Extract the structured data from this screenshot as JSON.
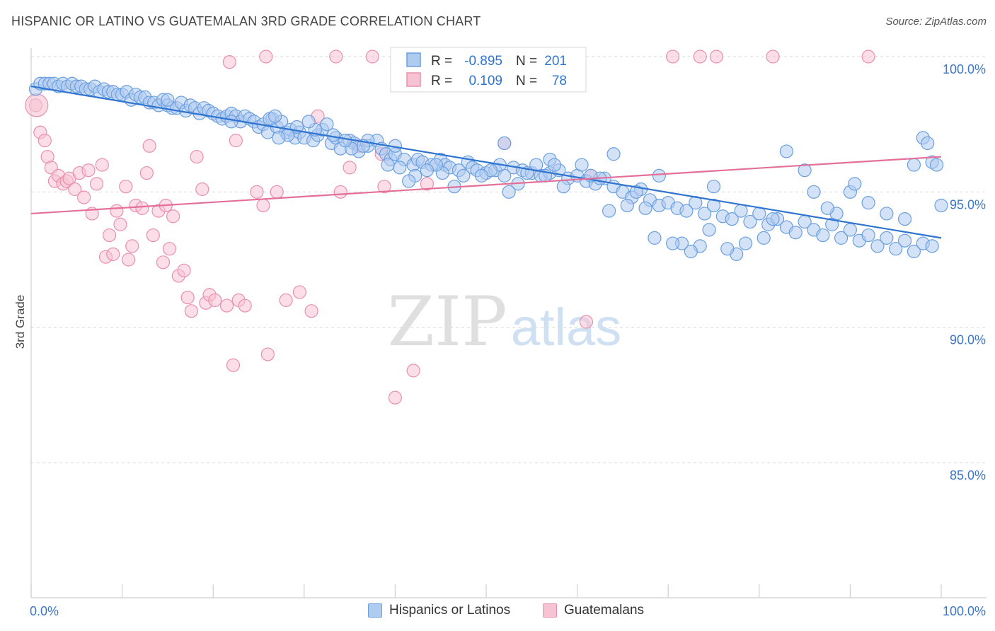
{
  "title": "HISPANIC OR LATINO VS GUATEMALAN 3RD GRADE CORRELATION CHART",
  "source": "Source: ZipAtlas.com",
  "watermark": {
    "zip": "ZIP",
    "atlas": "atlas"
  },
  "legend": {
    "rows": [
      {
        "r_label": "R =",
        "r_value": "-0.895",
        "n_label": "N =",
        "n_value": "201"
      },
      {
        "r_label": "R =",
        "r_value": "0.109",
        "n_label": "N =",
        "n_value": "78"
      }
    ]
  },
  "colors": {
    "blue_fill": "#aecbf0",
    "blue_stroke": "#6a9fdf",
    "blue_line": "#2f74d0",
    "pink_fill": "#f7c3d3",
    "pink_stroke": "#ea8fae",
    "pink_line": "#e4709a",
    "tick_label": "#3d77c8",
    "grid": "#d9d9d9"
  },
  "chart_data": {
    "type": "scatter",
    "xlabel": "",
    "ylabel": "3rd Grade",
    "xlim": [
      0,
      100
    ],
    "ylim": [
      80.5,
      100.5
    ],
    "x_tick_labels": [
      "0.0%",
      "100.0%"
    ],
    "y_ticks": [
      85,
      90,
      95,
      100
    ],
    "y_tick_labels": [
      "85.0%",
      "90.0%",
      "95.0%",
      "100.0%"
    ],
    "grid": "horizontal dashed",
    "legend_position": "top-center and bottom",
    "series": [
      {
        "name": "Hispanics or Latinos",
        "color": "#aecbf0",
        "trend": {
          "x": [
            0,
            100
          ],
          "y": [
            98.9,
            93.3
          ]
        },
        "points": [
          [
            0.5,
            98.8
          ],
          [
            1,
            99.0
          ],
          [
            1.5,
            99.0
          ],
          [
            2,
            99.0
          ],
          [
            2.5,
            99.0
          ],
          [
            3,
            98.9
          ],
          [
            3.5,
            99.0
          ],
          [
            4,
            98.9
          ],
          [
            4.5,
            99.0
          ],
          [
            5,
            98.9
          ],
          [
            5.5,
            98.9
          ],
          [
            6,
            98.8
          ],
          [
            6.5,
            98.8
          ],
          [
            7,
            98.9
          ],
          [
            7.5,
            98.7
          ],
          [
            8,
            98.8
          ],
          [
            8.5,
            98.7
          ],
          [
            9,
            98.7
          ],
          [
            9.5,
            98.6
          ],
          [
            10,
            98.6
          ],
          [
            10.5,
            98.7
          ],
          [
            11,
            98.4
          ],
          [
            11.5,
            98.6
          ],
          [
            12,
            98.5
          ],
          [
            12.5,
            98.5
          ],
          [
            13,
            98.3
          ],
          [
            13.5,
            98.3
          ],
          [
            14,
            98.2
          ],
          [
            14.5,
            98.4
          ],
          [
            15,
            98.2
          ],
          [
            15.5,
            98.1
          ],
          [
            16,
            98.1
          ],
          [
            16.5,
            98.3
          ],
          [
            17,
            98.0
          ],
          [
            17.5,
            98.2
          ],
          [
            18,
            98.1
          ],
          [
            18.5,
            97.9
          ],
          [
            19,
            98.1
          ],
          [
            19.5,
            98.0
          ],
          [
            20,
            97.9
          ],
          [
            20.5,
            97.8
          ],
          [
            21,
            97.7
          ],
          [
            21.5,
            97.8
          ],
          [
            22,
            97.9
          ],
          [
            22.5,
            97.8
          ],
          [
            23,
            97.6
          ],
          [
            23.5,
            97.8
          ],
          [
            24,
            97.7
          ],
          [
            24.5,
            97.6
          ],
          [
            25,
            97.4
          ],
          [
            25.5,
            97.5
          ],
          [
            26,
            97.2
          ],
          [
            26.5,
            97.7
          ],
          [
            27,
            97.4
          ],
          [
            27.5,
            97.6
          ],
          [
            28,
            97.2
          ],
          [
            28.5,
            97.3
          ],
          [
            29,
            97.0
          ],
          [
            29.5,
            97.2
          ],
          [
            30,
            97.0
          ],
          [
            31,
            96.9
          ],
          [
            31.5,
            97.1
          ],
          [
            32,
            97.3
          ],
          [
            33,
            96.8
          ],
          [
            33.5,
            97.0
          ],
          [
            34,
            96.6
          ],
          [
            35,
            96.9
          ],
          [
            35.5,
            96.8
          ],
          [
            36,
            96.5
          ],
          [
            37,
            96.7
          ],
          [
            38,
            96.9
          ],
          [
            38.5,
            96.6
          ],
          [
            39,
            96.4
          ],
          [
            39.5,
            96.2
          ],
          [
            40,
            96.4
          ],
          [
            41,
            96.2
          ],
          [
            42,
            96.0
          ],
          [
            42.5,
            96.2
          ],
          [
            43,
            96.1
          ],
          [
            44,
            96.0
          ],
          [
            45,
            96.2
          ],
          [
            45.5,
            96.0
          ],
          [
            46,
            95.9
          ],
          [
            47,
            95.8
          ],
          [
            48,
            96.1
          ],
          [
            48.5,
            95.9
          ],
          [
            49,
            95.8
          ],
          [
            50,
            95.7
          ],
          [
            51,
            95.8
          ],
          [
            52,
            95.6
          ],
          [
            53,
            95.9
          ],
          [
            54,
            95.8
          ],
          [
            55,
            95.7
          ],
          [
            56,
            95.6
          ],
          [
            57,
            95.7
          ],
          [
            58,
            95.8
          ],
          [
            59,
            95.5
          ],
          [
            60,
            95.6
          ],
          [
            61,
            95.4
          ],
          [
            62,
            95.3
          ],
          [
            63,
            95.5
          ],
          [
            64,
            95.2
          ],
          [
            65,
            95.0
          ],
          [
            66,
            94.8
          ],
          [
            67,
            95.1
          ],
          [
            68,
            94.7
          ],
          [
            69,
            94.5
          ],
          [
            70,
            94.6
          ],
          [
            71,
            94.4
          ],
          [
            72,
            94.3
          ],
          [
            73,
            94.6
          ],
          [
            74,
            94.2
          ],
          [
            75,
            94.5
          ],
          [
            76,
            94.1
          ],
          [
            77,
            94.0
          ],
          [
            78,
            94.3
          ],
          [
            79,
            93.9
          ],
          [
            80,
            94.2
          ],
          [
            81,
            93.8
          ],
          [
            82,
            94.0
          ],
          [
            83,
            93.7
          ],
          [
            84,
            93.5
          ],
          [
            85,
            93.9
          ],
          [
            86,
            93.6
          ],
          [
            87,
            93.4
          ],
          [
            88,
            93.8
          ],
          [
            89,
            93.3
          ],
          [
            90,
            93.6
          ],
          [
            91,
            93.2
          ],
          [
            92,
            93.4
          ],
          [
            93,
            93.0
          ],
          [
            94,
            93.3
          ],
          [
            95,
            92.9
          ],
          [
            96,
            93.2
          ],
          [
            97,
            92.8
          ],
          [
            98,
            93.1
          ],
          [
            99,
            93.0
          ],
          [
            15,
            98.4
          ],
          [
            22,
            97.6
          ],
          [
            37,
            96.9
          ],
          [
            40,
            96.7
          ],
          [
            52,
            96.8
          ],
          [
            57,
            96.2
          ],
          [
            64,
            96.4
          ],
          [
            69,
            95.6
          ],
          [
            75,
            95.2
          ],
          [
            83,
            96.5
          ],
          [
            85,
            95.8
          ],
          [
            86,
            95.0
          ],
          [
            90,
            95.0
          ],
          [
            92,
            94.6
          ],
          [
            94,
            94.2
          ],
          [
            96,
            94.0
          ],
          [
            97,
            96.0
          ],
          [
            98,
            97.0
          ],
          [
            99,
            96.1
          ],
          [
            100,
            94.5
          ],
          [
            99.5,
            96.0
          ],
          [
            98.5,
            96.8
          ],
          [
            90.5,
            95.3
          ],
          [
            88.5,
            94.2
          ],
          [
            87.5,
            94.4
          ],
          [
            81.5,
            94.0
          ],
          [
            80.5,
            93.3
          ],
          [
            78.5,
            93.1
          ],
          [
            77.5,
            92.7
          ],
          [
            76.5,
            92.9
          ],
          [
            74.5,
            93.6
          ],
          [
            73.5,
            93.0
          ],
          [
            72.5,
            92.8
          ],
          [
            71.5,
            93.1
          ],
          [
            70.5,
            93.1
          ],
          [
            68.5,
            93.3
          ],
          [
            67.5,
            94.4
          ],
          [
            66.5,
            95.0
          ],
          [
            65.5,
            94.5
          ],
          [
            63.5,
            94.3
          ],
          [
            62.5,
            95.5
          ],
          [
            61.5,
            95.6
          ],
          [
            60.5,
            96.0
          ],
          [
            58.5,
            95.2
          ],
          [
            57.5,
            96.0
          ],
          [
            56.5,
            95.6
          ],
          [
            55.5,
            96.0
          ],
          [
            54.5,
            95.7
          ],
          [
            53.5,
            95.3
          ],
          [
            52.5,
            95.0
          ],
          [
            51.5,
            96.0
          ],
          [
            50.5,
            95.8
          ],
          [
            49.5,
            95.6
          ],
          [
            47.5,
            95.6
          ],
          [
            46.5,
            95.2
          ],
          [
            45.2,
            95.7
          ],
          [
            44.5,
            96.0
          ],
          [
            43.5,
            95.8
          ],
          [
            42.2,
            95.6
          ],
          [
            41.5,
            95.4
          ],
          [
            40.5,
            95.9
          ],
          [
            39.2,
            96.0
          ],
          [
            36.5,
            96.7
          ],
          [
            35.2,
            96.6
          ],
          [
            34.5,
            96.9
          ],
          [
            33.2,
            97.1
          ],
          [
            32.5,
            97.5
          ],
          [
            31.2,
            97.3
          ],
          [
            30.5,
            97.6
          ],
          [
            29.2,
            97.4
          ],
          [
            28.2,
            97.1
          ],
          [
            27.2,
            97.0
          ],
          [
            26.2,
            97.7
          ],
          [
            26.8,
            97.8
          ]
        ]
      },
      {
        "name": "Guatemalans",
        "color": "#f7c3d3",
        "trend": {
          "x": [
            0,
            100
          ],
          "y": [
            94.2,
            96.3
          ]
        },
        "points": [
          [
            0.5,
            98.2
          ],
          [
            1,
            97.2
          ],
          [
            1.5,
            96.9
          ],
          [
            1.8,
            96.3
          ],
          [
            2.2,
            95.9
          ],
          [
            2.6,
            95.4
          ],
          [
            3,
            95.6
          ],
          [
            3.5,
            95.3
          ],
          [
            3.9,
            95.4
          ],
          [
            4.2,
            95.5
          ],
          [
            4.8,
            95.1
          ],
          [
            5.3,
            95.7
          ],
          [
            5.8,
            94.8
          ],
          [
            6.3,
            95.8
          ],
          [
            6.7,
            94.2
          ],
          [
            7.2,
            95.3
          ],
          [
            7.8,
            96.0
          ],
          [
            8.2,
            92.6
          ],
          [
            8.6,
            93.4
          ],
          [
            9,
            92.7
          ],
          [
            9.4,
            94.3
          ],
          [
            9.8,
            93.8
          ],
          [
            10.4,
            95.2
          ],
          [
            10.7,
            92.5
          ],
          [
            11.1,
            93.0
          ],
          [
            11.5,
            94.5
          ],
          [
            12.2,
            94.4
          ],
          [
            12.7,
            95.7
          ],
          [
            13,
            96.7
          ],
          [
            13.4,
            93.4
          ],
          [
            14,
            94.3
          ],
          [
            14.5,
            92.4
          ],
          [
            14.8,
            94.5
          ],
          [
            15.2,
            92.9
          ],
          [
            15.6,
            94.1
          ],
          [
            16.2,
            91.9
          ],
          [
            16.8,
            92.1
          ],
          [
            17.2,
            91.1
          ],
          [
            17.6,
            90.6
          ],
          [
            18.2,
            96.3
          ],
          [
            18.8,
            95.1
          ],
          [
            19.2,
            90.9
          ],
          [
            19.6,
            91.2
          ],
          [
            20.2,
            91.0
          ],
          [
            21.5,
            90.8
          ],
          [
            22.2,
            88.6
          ],
          [
            22.5,
            96.9
          ],
          [
            22.8,
            91.0
          ],
          [
            23.5,
            90.8
          ],
          [
            24.8,
            95.0
          ],
          [
            25.5,
            94.5
          ],
          [
            26,
            89.0
          ],
          [
            27,
            95.0
          ],
          [
            28,
            91.0
          ],
          [
            29.5,
            91.3
          ],
          [
            30.8,
            90.6
          ],
          [
            31.5,
            97.8
          ],
          [
            33.5,
            100.0
          ],
          [
            34,
            95.0
          ],
          [
            35,
            95.9
          ],
          [
            36,
            96.7
          ],
          [
            37.5,
            100.0
          ],
          [
            38.5,
            96.4
          ],
          [
            38.8,
            95.2
          ],
          [
            40,
            87.4
          ],
          [
            42,
            88.4
          ],
          [
            43.5,
            95.3
          ],
          [
            52,
            96.8
          ],
          [
            61.5,
            95.6
          ],
          [
            61,
            90.2
          ],
          [
            70.5,
            100.0
          ],
          [
            73.5,
            100.0
          ],
          [
            75.3,
            100.0
          ],
          [
            81.5,
            100.0
          ],
          [
            92,
            100.0
          ],
          [
            21.8,
            99.8
          ],
          [
            25.8,
            100.0
          ],
          [
            42.5,
            100.0
          ]
        ]
      }
    ]
  }
}
